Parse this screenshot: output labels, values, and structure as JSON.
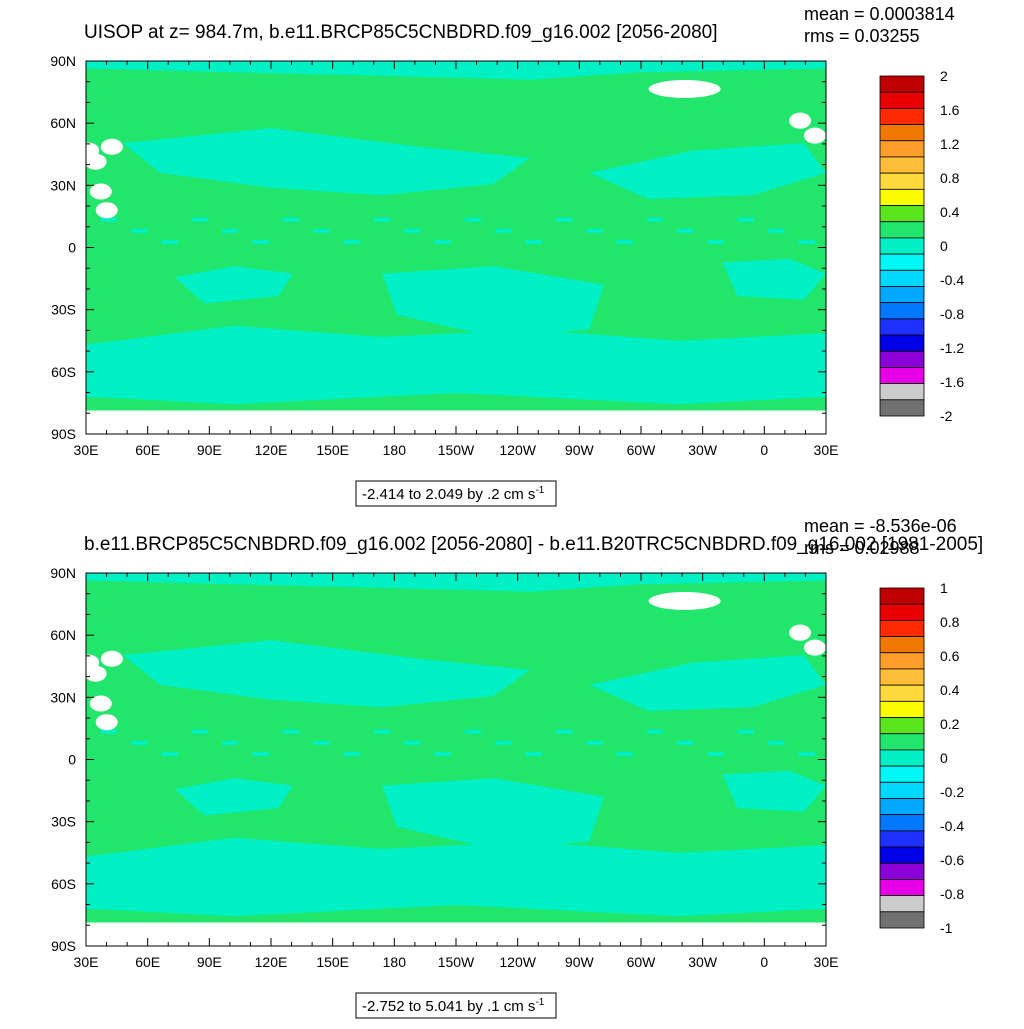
{
  "chart_data": [
    {
      "type": "heatmap",
      "title": "UISOP at z= 984.7m, b.e11.BRCP85C5CNBDRD.f09_g16.002 [2056-2080]",
      "stats": {
        "mean": "mean = 0.0003814",
        "rms": "rms = 0.03255"
      },
      "x_tick_labels": [
        "30E",
        "60E",
        "90E",
        "120E",
        "150E",
        "180",
        "150W",
        "120W",
        "90W",
        "60W",
        "30W",
        "0",
        "30E"
      ],
      "y_tick_labels": [
        "90N",
        "60N",
        "30N",
        "0",
        "30S",
        "60S",
        "90S"
      ],
      "range_label": {
        "text": "-2.414 to 2.049 by .2 cm s",
        "sup": "-1"
      },
      "colorbar": {
        "labels": [
          "2",
          "1.6",
          "1.2",
          "0.8",
          "0.4",
          "0",
          "-0.4",
          "-0.8",
          "-1.2",
          "-1.6",
          "-2"
        ],
        "colors": [
          "#c00000",
          "#e80000",
          "#ff2a00",
          "#f07800",
          "#ff9e2a",
          "#ffbe3a",
          "#ffda3c",
          "#fcfc00",
          "#5ae61e",
          "#22e66c",
          "#00f0c6",
          "#00f8f8",
          "#00d8ff",
          "#00a8ff",
          "#0078ff",
          "#1e32ff",
          "#0000e6",
          "#8c00d8",
          "#e600e6",
          "#cccccc",
          "#707070"
        ]
      },
      "field": {
        "ocean_major": "#22e66c",
        "ocean_minor": "#00f0c6",
        "land": "#ffffff"
      }
    },
    {
      "type": "heatmap",
      "title": "b.e11.BRCP85C5CNBDRD.f09_g16.002 [2056-2080] - b.e11.B20TRC5CNBDRD.f09_g16.002 [1981-2005]",
      "stats": {
        "mean": "mean = -8.536e-06",
        "rms": "rms = 0.02988"
      },
      "x_tick_labels": [
        "30E",
        "60E",
        "90E",
        "120E",
        "150E",
        "180",
        "150W",
        "120W",
        "90W",
        "60W",
        "30W",
        "0",
        "30E"
      ],
      "y_tick_labels": [
        "90N",
        "60N",
        "30N",
        "0",
        "30S",
        "60S",
        "90S"
      ],
      "range_label": {
        "text": "-2.752 to 5.041 by .1 cm s",
        "sup": "-1"
      },
      "colorbar": {
        "labels": [
          "1",
          "0.8",
          "0.6",
          "0.4",
          "0.2",
          "0",
          "-0.2",
          "-0.4",
          "-0.6",
          "-0.8",
          "-1"
        ],
        "colors": [
          "#c00000",
          "#e80000",
          "#ff2a00",
          "#f07800",
          "#ff9e2a",
          "#ffbe3a",
          "#ffda3c",
          "#fcfc00",
          "#5ae61e",
          "#22e66c",
          "#00f0c6",
          "#00f8f8",
          "#00d8ff",
          "#00a8ff",
          "#0078ff",
          "#1e32ff",
          "#0000e6",
          "#8c00d8",
          "#e600e6",
          "#cccccc",
          "#707070"
        ]
      },
      "field": {
        "ocean_major": "#22e66c",
        "ocean_minor": "#00f0c6",
        "land": "#ffffff"
      }
    }
  ]
}
